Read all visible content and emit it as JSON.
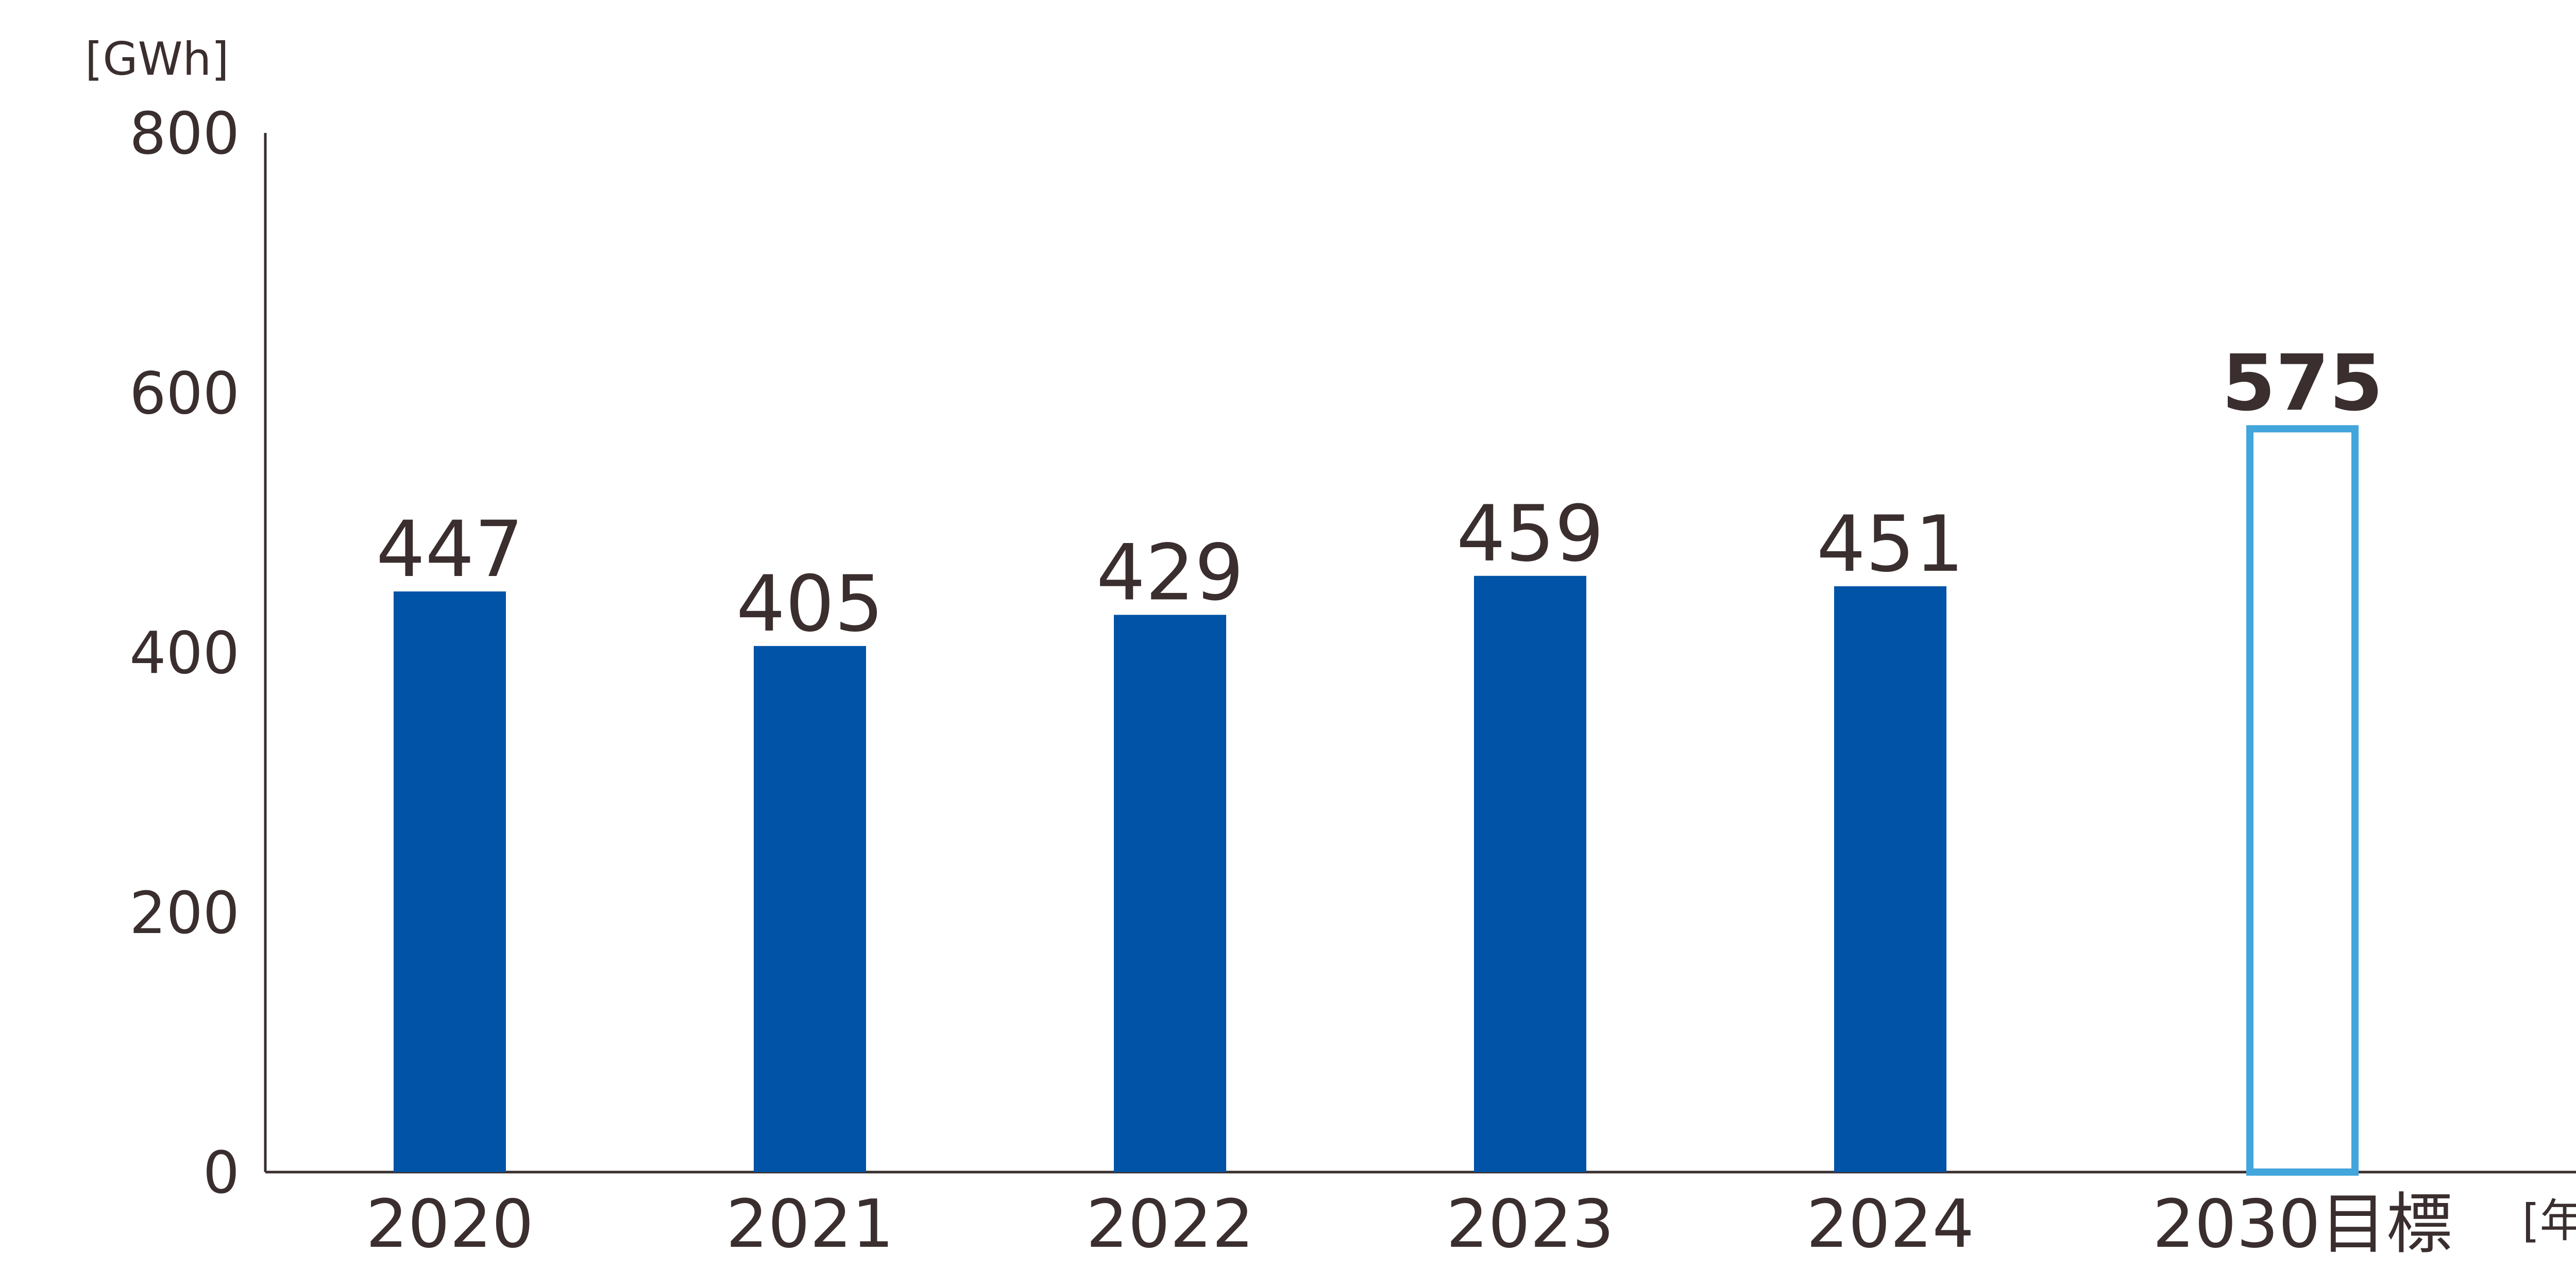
{
  "chart_data": {
    "type": "bar",
    "categories": [
      "2020",
      "2021",
      "2022",
      "2023",
      "2024",
      "2030目標"
    ],
    "values": [
      447,
      405,
      429,
      459,
      451,
      575
    ],
    "target_index": 5,
    "ylabel": "[GWh]",
    "xlabel": "[年度]",
    "ylim": [
      0,
      800
    ],
    "yticks": [
      0,
      200,
      400,
      600,
      800
    ],
    "grid": false,
    "legend": "none"
  },
  "colors": {
    "bar": "#0053A6",
    "target_outline": "#42A5DC",
    "target_label": "#0053A6",
    "text": "#3a2e2e"
  }
}
